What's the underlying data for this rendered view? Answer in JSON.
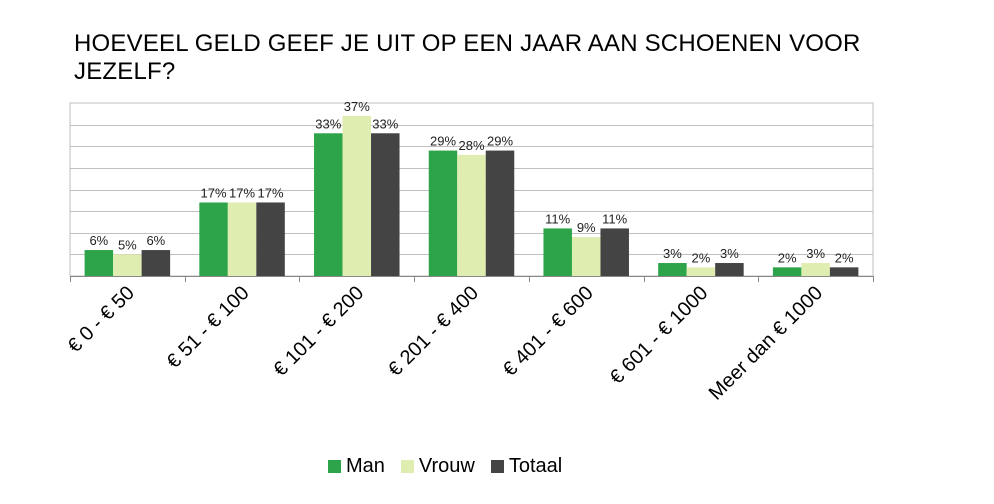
{
  "title": "HOEVEEL GELD GEEF JE UIT OP EEN JAAR AAN SCHOENEN VOOR JEZELF?",
  "colors": {
    "man": "#2da44a",
    "vrouw": "#dfeeb0",
    "totaal": "#444444",
    "grid": "#bfbfbf"
  },
  "chart_data": {
    "type": "bar",
    "title": "HOEVEEL GELD GEEF JE UIT OP EEN JAAR AAN SCHOENEN VOOR JEZELF?",
    "categories": [
      "€ 0 - € 50",
      "€ 51 - € 100",
      "€ 101 - € 200",
      "€ 201 - € 400",
      "€ 401 - € 600",
      "€ 601 - € 1000",
      "Meer dan € 1000"
    ],
    "series": [
      {
        "name": "Man",
        "values": [
          6,
          17,
          33,
          29,
          11,
          3,
          2
        ]
      },
      {
        "name": "Vrouw",
        "values": [
          5,
          17,
          37,
          28,
          9,
          2,
          3
        ]
      },
      {
        "name": "Totaal",
        "values": [
          6,
          17,
          33,
          29,
          11,
          3,
          2
        ]
      }
    ],
    "ylim": [
      0,
      40
    ],
    "grid": true,
    "legend_position": "bottom",
    "value_suffix": "%"
  },
  "legend": {
    "man": "Man",
    "vrouw": "Vrouw",
    "totaal": "Totaal"
  }
}
